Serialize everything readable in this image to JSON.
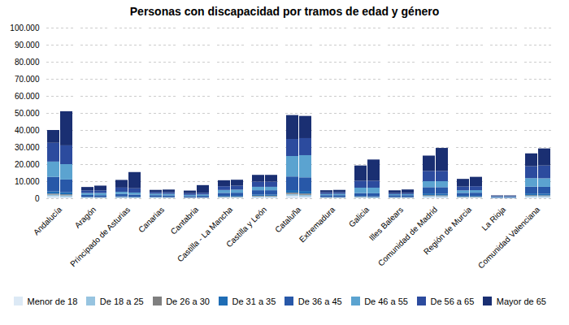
{
  "chart_data": {
    "type": "bar",
    "title": "Personas con discapacidad por tramos de edad y género",
    "stacked": true,
    "grid": true,
    "legend": "bottom",
    "categories": [
      "Andalucía",
      "Aragón",
      "Principado de Asturias",
      "Canarias",
      "Cantabria",
      "Castilla - La Mancha",
      "Castilla y León",
      "Cataluña",
      "Extremadura",
      "Galicia",
      "Illes Balears",
      "Comunidad de Madrid",
      "Región de Murcia",
      "La Rioja",
      "Comunidad Valenciana"
    ],
    "series": [
      {
        "name": "Menor de 18",
        "color": "#dce9f5",
        "values": [
          [
            1200,
            800
          ],
          [
            300,
            200
          ],
          [
            300,
            200
          ],
          [
            300,
            200
          ],
          [
            150,
            150
          ],
          [
            400,
            400
          ],
          [
            600,
            600
          ],
          [
            1500,
            1000
          ],
          [
            200,
            200
          ],
          [
            400,
            200
          ],
          [
            200,
            200
          ],
          [
            800,
            700
          ],
          [
            400,
            400
          ],
          [
            80,
            70
          ],
          [
            800,
            700
          ]
        ]
      },
      {
        "name": "De 18 a 25",
        "color": "#97c4e0",
        "values": [
          [
            900,
            900
          ],
          [
            200,
            200
          ],
          [
            250,
            250
          ],
          [
            200,
            200
          ],
          [
            150,
            150
          ],
          [
            350,
            350
          ],
          [
            500,
            500
          ],
          [
            1000,
            1000
          ],
          [
            200,
            200
          ],
          [
            300,
            300
          ],
          [
            200,
            200
          ],
          [
            600,
            600
          ],
          [
            350,
            350
          ],
          [
            75,
            75
          ],
          [
            600,
            600
          ]
        ]
      },
      {
        "name": "De 26 a 30",
        "color": "#7f7f7f",
        "values": [
          [
            600,
            600
          ],
          [
            150,
            150
          ],
          [
            200,
            200
          ],
          [
            150,
            150
          ],
          [
            100,
            100
          ],
          [
            250,
            250
          ],
          [
            350,
            350
          ],
          [
            750,
            750
          ],
          [
            150,
            150
          ],
          [
            200,
            200
          ],
          [
            150,
            150
          ],
          [
            400,
            400
          ],
          [
            250,
            250
          ],
          [
            50,
            50
          ],
          [
            400,
            400
          ]
        ]
      },
      {
        "name": "De 31 a 35",
        "color": "#1f6db5",
        "values": [
          [
            1300,
            1200
          ],
          [
            250,
            250
          ],
          [
            400,
            300
          ],
          [
            250,
            250
          ],
          [
            200,
            200
          ],
          [
            450,
            450
          ],
          [
            750,
            750
          ],
          [
            1500,
            1500
          ],
          [
            250,
            250
          ],
          [
            400,
            400
          ],
          [
            250,
            250
          ],
          [
            1000,
            1000
          ],
          [
            450,
            450
          ],
          [
            100,
            100
          ],
          [
            1000,
            1000
          ]
        ]
      },
      {
        "name": "De 36 a 45",
        "color": "#2858a8",
        "values": [
          [
            8500,
            7500
          ],
          [
            1000,
            1000
          ],
          [
            1300,
            1200
          ],
          [
            900,
            900
          ],
          [
            700,
            800
          ],
          [
            1700,
            1800
          ],
          [
            2500,
            2500
          ],
          [
            8000,
            8000
          ],
          [
            1000,
            1000
          ],
          [
            1700,
            1800
          ],
          [
            1000,
            1000
          ],
          [
            3700,
            3800
          ],
          [
            1700,
            1800
          ],
          [
            300,
            300
          ],
          [
            4000,
            4000
          ]
        ]
      },
      {
        "name": "De 46 a 55",
        "color": "#5ba3d0",
        "values": [
          [
            9000,
            9000
          ],
          [
            1200,
            1300
          ],
          [
            1300,
            1200
          ],
          [
            900,
            900
          ],
          [
            700,
            800
          ],
          [
            1700,
            1800
          ],
          [
            2000,
            2000
          ],
          [
            12000,
            13000
          ],
          [
            700,
            800
          ],
          [
            3200,
            3300
          ],
          [
            600,
            600
          ],
          [
            3500,
            3500
          ],
          [
            1500,
            1500
          ],
          [
            300,
            300
          ],
          [
            5000,
            5000
          ]
        ]
      },
      {
        "name": "De 56 a 65",
        "color": "#2c4b9e",
        "values": [
          [
            11000,
            11000
          ],
          [
            1500,
            1500
          ],
          [
            2500,
            2500
          ],
          [
            1000,
            1000
          ],
          [
            1000,
            1000
          ],
          [
            2200,
            2300
          ],
          [
            3000,
            3000
          ],
          [
            10000,
            10000
          ],
          [
            1000,
            1000
          ],
          [
            4000,
            4000
          ],
          [
            750,
            750
          ],
          [
            6000,
            6000
          ],
          [
            2200,
            2300
          ],
          [
            350,
            350
          ],
          [
            7000,
            7500
          ]
        ]
      },
      {
        "name": "Mayor de 65",
        "color": "#1a2f72",
        "values": [
          [
            7500,
            20000
          ],
          [
            2000,
            2800
          ],
          [
            4500,
            9500
          ],
          [
            1200,
            1500
          ],
          [
            1500,
            4500
          ],
          [
            3500,
            3500
          ],
          [
            4000,
            4000
          ],
          [
            14000,
            13000
          ],
          [
            1200,
            1300
          ],
          [
            9000,
            12500
          ],
          [
            1500,
            2000
          ],
          [
            9000,
            13500
          ],
          [
            4500,
            5500
          ],
          [
            400,
            400
          ],
          [
            7500,
            10000
          ]
        ]
      }
    ],
    "ylim": [
      0,
      100000
    ],
    "yticks": [
      0,
      {
        "value": 10000,
        "label": "10.000"
      },
      {
        "value": 20000,
        "label": "20.000"
      },
      {
        "value": 30000,
        "label": "30.000"
      },
      {
        "value": 40000,
        "label": "40.000"
      },
      {
        "value": 50000,
        "label": "50.000"
      },
      {
        "value": 60000,
        "label": "60.000"
      },
      {
        "value": 70000,
        "label": "70.000"
      },
      {
        "value": 80000,
        "label": "80.000"
      },
      {
        "value": 90000,
        "label": "90.000"
      },
      {
        "value": 100000,
        "label": "100.000"
      }
    ]
  }
}
